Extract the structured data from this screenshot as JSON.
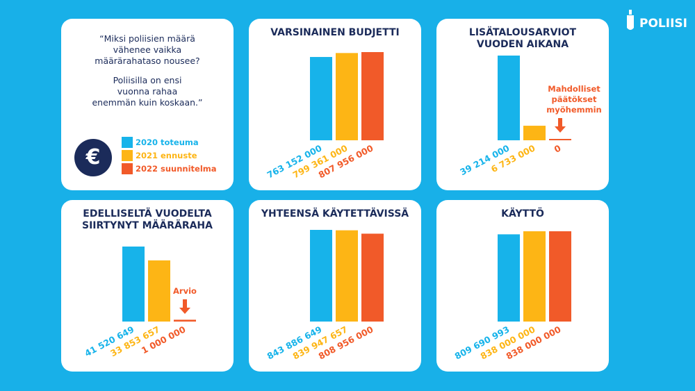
{
  "logo": "POLIISI",
  "quote": [
    "“Miksi poliisien määrä",
    "vähenee vaikka",
    "määrärahataso nousee?",
    "Poliisilla on ensi",
    "vuonna rahaa",
    "enemmän kuin koskaan.”"
  ],
  "icon": "€",
  "legend": {
    "labels": [
      "2020 toteuma",
      "2021 ennuste",
      "2022 suunnitelma"
    ],
    "colors": [
      "#17b3ea",
      "#fdb515",
      "#f15a29"
    ]
  },
  "chart_data": [
    {
      "type": "bar",
      "title": "VARSINAINEN BUDJETTI",
      "values": [
        763152000,
        799361000,
        807956000
      ],
      "value_labels": [
        "763 152 000",
        "799 361 000",
        "807 956 000"
      ]
    },
    {
      "type": "bar",
      "title": "LISÄTALOUSARVIOT VUODEN AIKANA",
      "values": [
        39214000,
        6733000,
        0
      ],
      "value_labels": [
        "39 214 000",
        "6 733 000",
        "0"
      ],
      "annotation": "Mahdolliset päätökset myöhemmin"
    },
    {
      "type": "bar",
      "title": "EDELLISELTÄ VUODELTA SIIRTYNYT MÄÄRÄRAHA",
      "values": [
        41520649,
        33853657,
        1000000
      ],
      "value_labels": [
        "41 520 649",
        "33 853 657",
        "1 000 000"
      ],
      "annotation": "Arvio"
    },
    {
      "type": "bar",
      "title": "YHTEENSÄ KÄYTETTÄVISSÄ",
      "values": [
        843886649,
        839947657,
        808956000
      ],
      "value_labels": [
        "843 886 649",
        "839 947 657",
        "808 956 000"
      ]
    },
    {
      "type": "bar",
      "title": "KÄYTTÖ",
      "values": [
        809690993,
        838000000,
        838000000
      ],
      "value_labels": [
        "809 690 993",
        "838 000 000",
        "838 000 000"
      ]
    }
  ]
}
